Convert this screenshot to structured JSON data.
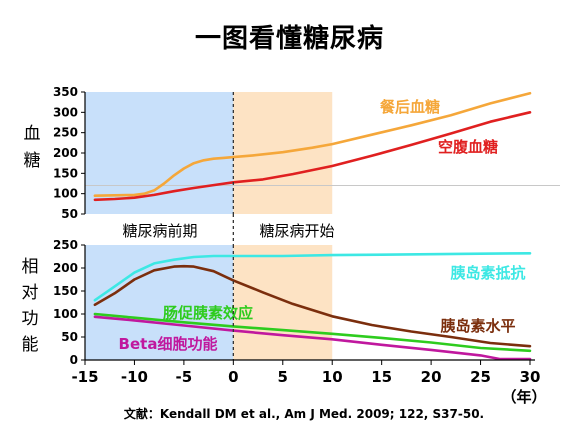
{
  "title": "一图看懂糖尿病",
  "citation": "文献：Kendall DM et al., Am J Med. 2009; 122, S37-50.",
  "x_unit": "（年）",
  "chart_data": [
    {
      "type": "line",
      "ylabel": "血糖",
      "ylim": [
        50,
        350
      ],
      "yticks": [
        50,
        100,
        150,
        200,
        250,
        300,
        350
      ],
      "reference_line": 120,
      "phases": [
        {
          "label": "糖尿病前期",
          "x_range": [
            -15,
            0
          ],
          "color": "#c8e0fa"
        },
        {
          "label": "糖尿病开始",
          "x_range": [
            0,
            10
          ],
          "color": "#fde3c4"
        }
      ],
      "series": [
        {
          "name": "餐后血糖",
          "color": "#f5a73a",
          "x": [
            -14,
            -12,
            -10,
            -9,
            -8,
            -7,
            -6,
            -5,
            -4,
            -3,
            -2,
            -1,
            0,
            2,
            5,
            8,
            10,
            14,
            18,
            22,
            26,
            30
          ],
          "values": [
            95,
            96,
            97,
            100,
            108,
            125,
            145,
            162,
            175,
            182,
            186,
            188,
            190,
            194,
            202,
            213,
            222,
            245,
            268,
            293,
            322,
            347
          ]
        },
        {
          "name": "空腹血糖",
          "color": "#e02020",
          "x": [
            -14,
            -12,
            -10,
            -8,
            -6,
            -4,
            -2,
            0,
            3,
            6,
            10,
            14,
            18,
            22,
            26,
            30
          ],
          "values": [
            85,
            87,
            90,
            97,
            106,
            114,
            121,
            128,
            135,
            148,
            168,
            193,
            220,
            248,
            277,
            300
          ]
        }
      ]
    },
    {
      "type": "line",
      "ylabel": "相对功能",
      "ylim": [
        0,
        250
      ],
      "yticks": [
        0,
        50,
        100,
        150,
        200,
        250
      ],
      "series": [
        {
          "name": "胰岛素抵抗",
          "color": "#3de8e4",
          "x": [
            -14,
            -12,
            -10,
            -8,
            -6,
            -4,
            -2,
            0,
            5,
            10,
            15,
            20,
            25,
            30
          ],
          "values": [
            130,
            160,
            190,
            210,
            218,
            224,
            226,
            226,
            226,
            228,
            229,
            230,
            231,
            232
          ]
        },
        {
          "name": "胰岛素水平",
          "color": "#7b2e0d",
          "x": [
            -14,
            -12,
            -10,
            -8,
            -6,
            -5,
            -4,
            -2,
            0,
            3,
            6,
            10,
            14,
            18,
            22,
            26,
            30
          ],
          "values": [
            120,
            145,
            175,
            195,
            203,
            204,
            203,
            193,
            173,
            147,
            122,
            95,
            76,
            62,
            50,
            37,
            30
          ]
        },
        {
          "name": "肠促胰素效应",
          "color": "#2ecc1e",
          "x": [
            -14,
            -10,
            -5,
            0,
            5,
            10,
            15,
            20,
            25,
            30
          ],
          "values": [
            100,
            92,
            82,
            73,
            65,
            57,
            48,
            38,
            26,
            20
          ]
        },
        {
          "name": "Beta细胞功能",
          "color": "#c0189e",
          "x": [
            -14,
            -10,
            -5,
            0,
            5,
            10,
            15,
            20,
            25,
            27,
            30
          ],
          "values": [
            94,
            86,
            75,
            64,
            54,
            45,
            33,
            22,
            10,
            2,
            2
          ]
        }
      ]
    }
  ],
  "xticks": [
    -15,
    -10,
    -5,
    0,
    5,
    10,
    15,
    20,
    25,
    30
  ]
}
